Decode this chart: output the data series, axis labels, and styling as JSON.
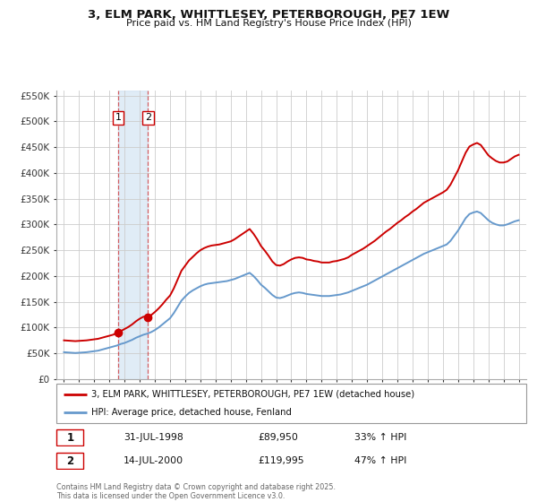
{
  "title": "3, ELM PARK, WHITTLESEY, PETERBOROUGH, PE7 1EW",
  "subtitle": "Price paid vs. HM Land Registry's House Price Index (HPI)",
  "legend_label_red": "3, ELM PARK, WHITTLESEY, PETERBOROUGH, PE7 1EW (detached house)",
  "legend_label_blue": "HPI: Average price, detached house, Fenland",
  "sale1_label": "1",
  "sale1_date": "31-JUL-1998",
  "sale1_price": "£89,950",
  "sale1_hpi": "33% ↑ HPI",
  "sale1_year": 1998.58,
  "sale1_value": 89950,
  "sale2_label": "2",
  "sale2_date": "14-JUL-2000",
  "sale2_price": "£119,995",
  "sale2_hpi": "47% ↑ HPI",
  "sale2_year": 2000.54,
  "sale2_value": 119995,
  "ylim": [
    0,
    560000
  ],
  "yticks": [
    0,
    50000,
    100000,
    150000,
    200000,
    250000,
    300000,
    350000,
    400000,
    450000,
    500000,
    550000
  ],
  "ytick_labels": [
    "£0",
    "£50K",
    "£100K",
    "£150K",
    "£200K",
    "£250K",
    "£300K",
    "£350K",
    "£400K",
    "£450K",
    "£500K",
    "£550K"
  ],
  "xlim": [
    1994.5,
    2025.5
  ],
  "background_color": "#ffffff",
  "plot_bg_color": "#ffffff",
  "grid_color": "#cccccc",
  "red_color": "#cc0000",
  "blue_color": "#6699cc",
  "shade_color": "#cce0f0",
  "footer": "Contains HM Land Registry data © Crown copyright and database right 2025.\nThis data is licensed under the Open Government Licence v3.0.",
  "hpi_data": [
    [
      1995.0,
      52000
    ],
    [
      1995.25,
      51500
    ],
    [
      1995.5,
      51000
    ],
    [
      1995.75,
      50500
    ],
    [
      1996.0,
      51000
    ],
    [
      1996.25,
      51500
    ],
    [
      1996.5,
      52000
    ],
    [
      1996.75,
      53000
    ],
    [
      1997.0,
      54000
    ],
    [
      1997.25,
      55000
    ],
    [
      1997.5,
      57000
    ],
    [
      1997.75,
      59000
    ],
    [
      1998.0,
      61000
    ],
    [
      1998.25,
      63000
    ],
    [
      1998.5,
      65000
    ],
    [
      1998.75,
      68000
    ],
    [
      1999.0,
      70000
    ],
    [
      1999.25,
      73000
    ],
    [
      1999.5,
      76000
    ],
    [
      1999.75,
      80000
    ],
    [
      2000.0,
      83000
    ],
    [
      2000.25,
      86000
    ],
    [
      2000.5,
      88000
    ],
    [
      2000.75,
      91000
    ],
    [
      2001.0,
      95000
    ],
    [
      2001.25,
      100000
    ],
    [
      2001.5,
      106000
    ],
    [
      2001.75,
      112000
    ],
    [
      2002.0,
      118000
    ],
    [
      2002.25,
      128000
    ],
    [
      2002.5,
      140000
    ],
    [
      2002.75,
      152000
    ],
    [
      2003.0,
      160000
    ],
    [
      2003.25,
      167000
    ],
    [
      2003.5,
      172000
    ],
    [
      2003.75,
      176000
    ],
    [
      2004.0,
      180000
    ],
    [
      2004.25,
      183000
    ],
    [
      2004.5,
      185000
    ],
    [
      2004.75,
      186000
    ],
    [
      2005.0,
      187000
    ],
    [
      2005.25,
      188000
    ],
    [
      2005.5,
      189000
    ],
    [
      2005.75,
      190000
    ],
    [
      2006.0,
      192000
    ],
    [
      2006.25,
      194000
    ],
    [
      2006.5,
      197000
    ],
    [
      2006.75,
      200000
    ],
    [
      2007.0,
      203000
    ],
    [
      2007.25,
      206000
    ],
    [
      2007.5,
      200000
    ],
    [
      2007.75,
      192000
    ],
    [
      2008.0,
      183000
    ],
    [
      2008.25,
      177000
    ],
    [
      2008.5,
      170000
    ],
    [
      2008.75,
      163000
    ],
    [
      2009.0,
      158000
    ],
    [
      2009.25,
      157000
    ],
    [
      2009.5,
      159000
    ],
    [
      2009.75,
      162000
    ],
    [
      2010.0,
      165000
    ],
    [
      2010.25,
      167000
    ],
    [
      2010.5,
      168000
    ],
    [
      2010.75,
      167000
    ],
    [
      2011.0,
      165000
    ],
    [
      2011.25,
      164000
    ],
    [
      2011.5,
      163000
    ],
    [
      2011.75,
      162000
    ],
    [
      2012.0,
      161000
    ],
    [
      2012.25,
      161000
    ],
    [
      2012.5,
      161000
    ],
    [
      2012.75,
      162000
    ],
    [
      2013.0,
      163000
    ],
    [
      2013.25,
      164000
    ],
    [
      2013.5,
      166000
    ],
    [
      2013.75,
      168000
    ],
    [
      2014.0,
      171000
    ],
    [
      2014.25,
      174000
    ],
    [
      2014.5,
      177000
    ],
    [
      2014.75,
      180000
    ],
    [
      2015.0,
      183000
    ],
    [
      2015.25,
      187000
    ],
    [
      2015.5,
      191000
    ],
    [
      2015.75,
      195000
    ],
    [
      2016.0,
      199000
    ],
    [
      2016.25,
      203000
    ],
    [
      2016.5,
      207000
    ],
    [
      2016.75,
      211000
    ],
    [
      2017.0,
      215000
    ],
    [
      2017.25,
      219000
    ],
    [
      2017.5,
      223000
    ],
    [
      2017.75,
      227000
    ],
    [
      2018.0,
      231000
    ],
    [
      2018.25,
      235000
    ],
    [
      2018.5,
      239000
    ],
    [
      2018.75,
      243000
    ],
    [
      2019.0,
      246000
    ],
    [
      2019.25,
      249000
    ],
    [
      2019.5,
      252000
    ],
    [
      2019.75,
      255000
    ],
    [
      2020.0,
      258000
    ],
    [
      2020.25,
      261000
    ],
    [
      2020.5,
      268000
    ],
    [
      2020.75,
      278000
    ],
    [
      2021.0,
      288000
    ],
    [
      2021.25,
      300000
    ],
    [
      2021.5,
      312000
    ],
    [
      2021.75,
      320000
    ],
    [
      2022.0,
      323000
    ],
    [
      2022.25,
      325000
    ],
    [
      2022.5,
      322000
    ],
    [
      2022.75,
      315000
    ],
    [
      2023.0,
      308000
    ],
    [
      2023.25,
      303000
    ],
    [
      2023.5,
      300000
    ],
    [
      2023.75,
      298000
    ],
    [
      2024.0,
      298000
    ],
    [
      2024.25,
      300000
    ],
    [
      2024.5,
      303000
    ],
    [
      2024.75,
      306000
    ],
    [
      2025.0,
      308000
    ]
  ],
  "hpi_indexed_data": [
    [
      1995.0,
      75000
    ],
    [
      1995.25,
      74500
    ],
    [
      1995.5,
      74000
    ],
    [
      1995.75,
      73500
    ],
    [
      1996.0,
      74000
    ],
    [
      1996.25,
      74500
    ],
    [
      1996.5,
      75000
    ],
    [
      1996.75,
      76000
    ],
    [
      1997.0,
      77000
    ],
    [
      1997.25,
      78000
    ],
    [
      1997.5,
      80000
    ],
    [
      1997.75,
      82000
    ],
    [
      1998.0,
      84000
    ],
    [
      1998.25,
      86000
    ],
    [
      1998.5,
      89950
    ],
    [
      1998.75,
      93000
    ],
    [
      1999.0,
      97000
    ],
    [
      1999.25,
      101000
    ],
    [
      1999.5,
      106000
    ],
    [
      1999.75,
      112000
    ],
    [
      2000.0,
      117000
    ],
    [
      2000.25,
      121000
    ],
    [
      2000.5,
      119995
    ],
    [
      2000.75,
      124000
    ],
    [
      2001.0,
      130000
    ],
    [
      2001.25,
      137000
    ],
    [
      2001.5,
      145000
    ],
    [
      2001.75,
      154000
    ],
    [
      2002.0,
      162000
    ],
    [
      2002.25,
      176000
    ],
    [
      2002.5,
      193000
    ],
    [
      2002.75,
      210000
    ],
    [
      2003.0,
      220000
    ],
    [
      2003.25,
      230000
    ],
    [
      2003.5,
      237000
    ],
    [
      2003.75,
      244000
    ],
    [
      2004.0,
      250000
    ],
    [
      2004.25,
      254000
    ],
    [
      2004.5,
      257000
    ],
    [
      2004.75,
      259000
    ],
    [
      2005.0,
      260000
    ],
    [
      2005.25,
      261000
    ],
    [
      2005.5,
      263000
    ],
    [
      2005.75,
      265000
    ],
    [
      2006.0,
      267000
    ],
    [
      2006.25,
      271000
    ],
    [
      2006.5,
      276000
    ],
    [
      2006.75,
      281000
    ],
    [
      2007.0,
      286000
    ],
    [
      2007.25,
      291000
    ],
    [
      2007.5,
      282000
    ],
    [
      2007.75,
      271000
    ],
    [
      2008.0,
      258000
    ],
    [
      2008.25,
      249000
    ],
    [
      2008.5,
      239000
    ],
    [
      2008.75,
      228000
    ],
    [
      2009.0,
      221000
    ],
    [
      2009.25,
      220000
    ],
    [
      2009.5,
      223000
    ],
    [
      2009.75,
      228000
    ],
    [
      2010.0,
      232000
    ],
    [
      2010.25,
      235000
    ],
    [
      2010.5,
      236000
    ],
    [
      2010.75,
      235000
    ],
    [
      2011.0,
      232000
    ],
    [
      2011.25,
      231000
    ],
    [
      2011.5,
      229000
    ],
    [
      2011.75,
      228000
    ],
    [
      2012.0,
      226000
    ],
    [
      2012.25,
      226000
    ],
    [
      2012.5,
      226000
    ],
    [
      2012.75,
      228000
    ],
    [
      2013.0,
      229000
    ],
    [
      2013.25,
      231000
    ],
    [
      2013.5,
      233000
    ],
    [
      2013.75,
      236000
    ],
    [
      2014.0,
      241000
    ],
    [
      2014.25,
      245000
    ],
    [
      2014.5,
      249000
    ],
    [
      2014.75,
      253000
    ],
    [
      2015.0,
      258000
    ],
    [
      2015.25,
      263000
    ],
    [
      2015.5,
      268000
    ],
    [
      2015.75,
      274000
    ],
    [
      2016.0,
      280000
    ],
    [
      2016.25,
      286000
    ],
    [
      2016.5,
      291000
    ],
    [
      2016.75,
      297000
    ],
    [
      2017.0,
      303000
    ],
    [
      2017.25,
      308000
    ],
    [
      2017.5,
      314000
    ],
    [
      2017.75,
      319000
    ],
    [
      2018.0,
      325000
    ],
    [
      2018.25,
      330000
    ],
    [
      2018.5,
      336000
    ],
    [
      2018.75,
      342000
    ],
    [
      2019.0,
      346000
    ],
    [
      2019.25,
      350000
    ],
    [
      2019.5,
      354000
    ],
    [
      2019.75,
      358000
    ],
    [
      2020.0,
      362000
    ],
    [
      2020.25,
      367000
    ],
    [
      2020.5,
      377000
    ],
    [
      2020.75,
      391000
    ],
    [
      2021.0,
      405000
    ],
    [
      2021.25,
      422000
    ],
    [
      2021.5,
      439000
    ],
    [
      2021.75,
      451000
    ],
    [
      2022.0,
      455000
    ],
    [
      2022.25,
      458000
    ],
    [
      2022.5,
      454000
    ],
    [
      2022.75,
      444000
    ],
    [
      2023.0,
      434000
    ],
    [
      2023.25,
      428000
    ],
    [
      2023.5,
      423000
    ],
    [
      2023.75,
      420000
    ],
    [
      2024.0,
      420000
    ],
    [
      2024.25,
      422000
    ],
    [
      2024.5,
      427000
    ],
    [
      2024.75,
      432000
    ],
    [
      2025.0,
      435000
    ]
  ]
}
